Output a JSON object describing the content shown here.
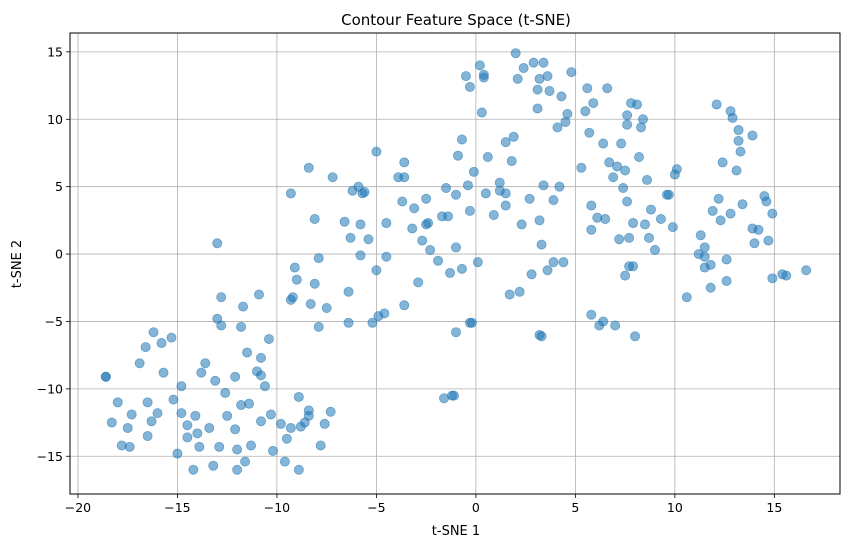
{
  "chart_data": {
    "type": "scatter",
    "title": "Contour Feature Space (t-SNE)",
    "xlabel": "t-SNE 1",
    "ylabel": "t-SNE 2",
    "xlim": [
      -20.4,
      18.3
    ],
    "ylim": [
      -17.8,
      16.4
    ],
    "xticks": [
      -20,
      -15,
      -10,
      -5,
      0,
      5,
      10,
      15
    ],
    "yticks": [
      -15,
      -10,
      -5,
      0,
      5,
      10,
      15
    ],
    "grid": true,
    "marker_color": "#1f77b4",
    "marker_alpha": 0.55,
    "points": [
      [
        -18.6,
        -9.1
      ],
      [
        -18.6,
        -9.1
      ],
      [
        -18.3,
        -12.5
      ],
      [
        -18.0,
        -11.0
      ],
      [
        -17.8,
        -14.2
      ],
      [
        -17.5,
        -12.9
      ],
      [
        -17.4,
        -14.3
      ],
      [
        -17.3,
        -11.9
      ],
      [
        -16.9,
        -8.1
      ],
      [
        -16.6,
        -6.9
      ],
      [
        -16.5,
        -11.0
      ],
      [
        -16.5,
        -13.5
      ],
      [
        -16.3,
        -12.4
      ],
      [
        -16.2,
        -5.8
      ],
      [
        -16.0,
        -11.8
      ],
      [
        -15.8,
        -6.6
      ],
      [
        -15.7,
        -8.8
      ],
      [
        -15.3,
        -6.2
      ],
      [
        -15.2,
        -10.8
      ],
      [
        -15.0,
        -14.8
      ],
      [
        -14.8,
        -9.8
      ],
      [
        -14.8,
        -11.8
      ],
      [
        -14.5,
        -12.7
      ],
      [
        -14.5,
        -13.6
      ],
      [
        -14.2,
        -16.0
      ],
      [
        -14.1,
        -12.0
      ],
      [
        -14.0,
        -13.3
      ],
      [
        -13.9,
        -14.3
      ],
      [
        -13.8,
        -8.8
      ],
      [
        -13.6,
        -8.1
      ],
      [
        -13.4,
        -12.9
      ],
      [
        -13.2,
        -15.7
      ],
      [
        -13.1,
        -9.4
      ],
      [
        -13.0,
        -4.8
      ],
      [
        -13.0,
        0.8
      ],
      [
        -12.9,
        -14.3
      ],
      [
        -12.8,
        -5.3
      ],
      [
        -12.8,
        -3.2
      ],
      [
        -12.6,
        -10.3
      ],
      [
        -12.5,
        -12.0
      ],
      [
        -12.1,
        -9.1
      ],
      [
        -12.1,
        -13.0
      ],
      [
        -12.0,
        -14.5
      ],
      [
        -12.0,
        -16.0
      ],
      [
        -11.8,
        -11.2
      ],
      [
        -11.8,
        -5.4
      ],
      [
        -11.7,
        -3.9
      ],
      [
        -11.6,
        -15.4
      ],
      [
        -11.5,
        -7.3
      ],
      [
        -11.4,
        -11.1
      ],
      [
        -11.3,
        -14.2
      ],
      [
        -11.0,
        -8.7
      ],
      [
        -10.9,
        -3.0
      ],
      [
        -10.8,
        -12.4
      ],
      [
        -10.8,
        -9.0
      ],
      [
        -10.8,
        -7.7
      ],
      [
        -10.6,
        -9.8
      ],
      [
        -10.4,
        -6.3
      ],
      [
        -10.3,
        -11.9
      ],
      [
        -10.2,
        -14.6
      ],
      [
        -9.8,
        -12.6
      ],
      [
        -9.6,
        -15.4
      ],
      [
        -9.5,
        -13.7
      ],
      [
        -9.3,
        -12.9
      ],
      [
        -9.2,
        -3.2
      ],
      [
        -9.3,
        -3.4
      ],
      [
        -9.3,
        4.5
      ],
      [
        -9.1,
        -1.0
      ],
      [
        -9.0,
        -1.9
      ],
      [
        -8.9,
        -10.6
      ],
      [
        -8.9,
        -16.0
      ],
      [
        -8.8,
        -12.8
      ],
      [
        -8.6,
        -12.5
      ],
      [
        -8.4,
        -11.6
      ],
      [
        -8.4,
        -12.0
      ],
      [
        -8.3,
        -3.7
      ],
      [
        -8.1,
        2.6
      ],
      [
        -8.1,
        -2.2
      ],
      [
        -7.9,
        -5.4
      ],
      [
        -7.9,
        -0.3
      ],
      [
        -7.8,
        -14.2
      ],
      [
        -7.6,
        -12.6
      ],
      [
        -7.5,
        -4.0
      ],
      [
        -7.3,
        -11.7
      ],
      [
        -7.2,
        5.7
      ],
      [
        -8.4,
        6.4
      ],
      [
        -6.6,
        2.4
      ],
      [
        -6.4,
        -2.8
      ],
      [
        -6.4,
        -5.1
      ],
      [
        -6.3,
        1.2
      ],
      [
        -6.2,
        4.7
      ],
      [
        -5.9,
        5.0
      ],
      [
        -5.8,
        2.2
      ],
      [
        -5.8,
        -0.1
      ],
      [
        -5.7,
        4.5
      ],
      [
        -5.6,
        4.6
      ],
      [
        -5.4,
        1.1
      ],
      [
        -5.2,
        -5.1
      ],
      [
        -5.0,
        7.6
      ],
      [
        -5.0,
        -1.2
      ],
      [
        -4.9,
        -4.6
      ],
      [
        -4.6,
        -4.4
      ],
      [
        -4.5,
        2.3
      ],
      [
        -4.5,
        -0.2
      ],
      [
        -3.9,
        5.7
      ],
      [
        -3.7,
        3.9
      ],
      [
        -3.6,
        -3.8
      ],
      [
        -3.6,
        6.8
      ],
      [
        -3.6,
        5.7
      ],
      [
        -3.2,
        1.9
      ],
      [
        -3.1,
        3.4
      ],
      [
        -2.9,
        -2.1
      ],
      [
        -2.7,
        1.0
      ],
      [
        -2.5,
        4.1
      ],
      [
        -2.5,
        2.2
      ],
      [
        -2.4,
        2.3
      ],
      [
        -2.3,
        0.3
      ],
      [
        -1.9,
        -0.5
      ],
      [
        -1.7,
        2.8
      ],
      [
        -1.5,
        4.9
      ],
      [
        -1.4,
        2.8
      ],
      [
        -1.3,
        -1.4
      ],
      [
        -1.2,
        -10.5
      ],
      [
        -1.1,
        -10.5
      ],
      [
        -1.6,
        -10.7
      ],
      [
        -1.0,
        -5.8
      ],
      [
        -1.0,
        0.5
      ],
      [
        -1.0,
        4.4
      ],
      [
        -0.9,
        7.3
      ],
      [
        -0.7,
        8.5
      ],
      [
        -0.7,
        -1.1
      ],
      [
        -0.5,
        13.2
      ],
      [
        -0.4,
        5.1
      ],
      [
        -0.3,
        12.4
      ],
      [
        -0.2,
        -5.1
      ],
      [
        -0.3,
        3.2
      ],
      [
        -0.1,
        6.1
      ],
      [
        -0.3,
        -5.1
      ],
      [
        0.1,
        -0.6
      ],
      [
        0.2,
        14.0
      ],
      [
        0.3,
        10.5
      ],
      [
        0.4,
        13.1
      ],
      [
        0.4,
        13.3
      ],
      [
        0.5,
        4.5
      ],
      [
        0.6,
        7.2
      ],
      [
        0.9,
        2.9
      ],
      [
        1.2,
        4.7
      ],
      [
        1.2,
        5.3
      ],
      [
        1.5,
        3.6
      ],
      [
        1.5,
        4.5
      ],
      [
        1.5,
        8.3
      ],
      [
        1.7,
        -3.0
      ],
      [
        1.8,
        6.9
      ],
      [
        1.9,
        8.7
      ],
      [
        2.0,
        14.9
      ],
      [
        2.1,
        13.0
      ],
      [
        2.2,
        -2.8
      ],
      [
        2.3,
        2.2
      ],
      [
        2.4,
        13.8
      ],
      [
        2.7,
        4.1
      ],
      [
        2.8,
        -1.5
      ],
      [
        2.9,
        14.2
      ],
      [
        3.1,
        12.2
      ],
      [
        3.1,
        10.8
      ],
      [
        3.2,
        13.0
      ],
      [
        3.3,
        0.7
      ],
      [
        3.2,
        2.5
      ],
      [
        3.2,
        -6.0
      ],
      [
        3.3,
        -6.1
      ],
      [
        3.4,
        14.2
      ],
      [
        3.4,
        5.1
      ],
      [
        3.6,
        13.2
      ],
      [
        3.6,
        -1.2
      ],
      [
        3.7,
        12.1
      ],
      [
        3.9,
        4.0
      ],
      [
        3.9,
        -0.6
      ],
      [
        4.1,
        9.4
      ],
      [
        4.2,
        5.0
      ],
      [
        4.3,
        11.7
      ],
      [
        4.4,
        -0.6
      ],
      [
        4.5,
        9.8
      ],
      [
        4.6,
        10.4
      ],
      [
        4.8,
        13.5
      ],
      [
        5.3,
        6.4
      ],
      [
        5.5,
        10.6
      ],
      [
        5.6,
        12.3
      ],
      [
        5.7,
        9.0
      ],
      [
        5.8,
        1.8
      ],
      [
        5.8,
        -4.5
      ],
      [
        5.8,
        3.6
      ],
      [
        5.9,
        11.2
      ],
      [
        6.1,
        2.7
      ],
      [
        6.2,
        -5.3
      ],
      [
        6.4,
        8.2
      ],
      [
        6.4,
        -5.0
      ],
      [
        6.5,
        2.6
      ],
      [
        6.6,
        12.3
      ],
      [
        6.7,
        6.8
      ],
      [
        6.9,
        5.7
      ],
      [
        7.0,
        -5.3
      ],
      [
        7.1,
        6.5
      ],
      [
        7.2,
        1.1
      ],
      [
        7.3,
        8.2
      ],
      [
        7.4,
        4.9
      ],
      [
        7.5,
        -1.6
      ],
      [
        7.5,
        6.2
      ],
      [
        7.6,
        10.3
      ],
      [
        7.6,
        9.6
      ],
      [
        7.6,
        3.9
      ],
      [
        7.7,
        -0.9
      ],
      [
        7.7,
        1.2
      ],
      [
        7.8,
        11.2
      ],
      [
        7.9,
        2.3
      ],
      [
        7.9,
        -0.9
      ],
      [
        8.0,
        -6.1
      ],
      [
        8.1,
        11.1
      ],
      [
        8.2,
        7.2
      ],
      [
        8.3,
        9.4
      ],
      [
        8.4,
        10.0
      ],
      [
        8.5,
        2.2
      ],
      [
        8.6,
        5.5
      ],
      [
        8.7,
        1.2
      ],
      [
        8.8,
        3.3
      ],
      [
        9.0,
        0.3
      ],
      [
        9.3,
        2.6
      ],
      [
        9.6,
        4.4
      ],
      [
        9.7,
        4.4
      ],
      [
        9.9,
        2.0
      ],
      [
        10.1,
        6.3
      ],
      [
        10.0,
        5.9
      ],
      [
        10.6,
        -3.2
      ],
      [
        11.3,
        1.4
      ],
      [
        11.2,
        0.0
      ],
      [
        11.5,
        0.5
      ],
      [
        11.5,
        -1.0
      ],
      [
        11.5,
        -0.2
      ],
      [
        11.8,
        -0.8
      ],
      [
        11.8,
        -2.5
      ],
      [
        11.9,
        3.2
      ],
      [
        12.1,
        11.1
      ],
      [
        12.2,
        4.1
      ],
      [
        12.3,
        2.5
      ],
      [
        12.4,
        6.8
      ],
      [
        12.6,
        -0.4
      ],
      [
        12.6,
        -2.0
      ],
      [
        12.8,
        3.0
      ],
      [
        12.8,
        10.6
      ],
      [
        12.9,
        10.1
      ],
      [
        13.1,
        6.2
      ],
      [
        13.2,
        8.4
      ],
      [
        13.2,
        9.2
      ],
      [
        13.3,
        7.6
      ],
      [
        13.4,
        3.7
      ],
      [
        13.9,
        8.8
      ],
      [
        13.9,
        1.9
      ],
      [
        14.0,
        0.8
      ],
      [
        14.2,
        1.8
      ],
      [
        14.5,
        4.3
      ],
      [
        14.6,
        3.9
      ],
      [
        14.7,
        1.0
      ],
      [
        14.9,
        3.0
      ],
      [
        14.9,
        -1.8
      ],
      [
        15.4,
        -1.5
      ],
      [
        15.6,
        -1.6
      ],
      [
        16.6,
        -1.2
      ]
    ]
  }
}
